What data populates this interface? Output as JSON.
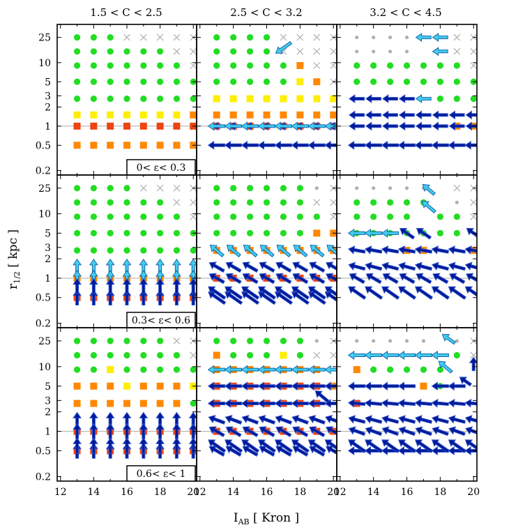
{
  "chart_data": {
    "type": "scatter",
    "description_axes": "3x3 panel grid of symbol maps; columns = concentration bins, rows = ellipticity bins",
    "column_titles": [
      "1.5 < C < 2.5",
      "2.5 < C < 3.2",
      "3.2 < C < 4.5"
    ],
    "row_labels": [
      "0< ε< 0.3",
      "0.3< ε< 0.6",
      "0.6< ε< 1"
    ],
    "xlabel_main": "I",
    "xlabel_sub": "AB",
    "xlabel_rest": " [ Kron ]",
    "ylabel_main": "r",
    "ylabel_sub": "1/2",
    "ylabel_rest": " [ kpc ]",
    "x_ticks": [
      12,
      14,
      16,
      18,
      20
    ],
    "x_tick_labels": [
      "12",
      "14",
      "16",
      "18",
      "20"
    ],
    "xlim": [
      11.8,
      20.2
    ],
    "y_scale": "log",
    "y_ticks": [
      0.2,
      0.5,
      1,
      2,
      3,
      5,
      10,
      25
    ],
    "y_tick_labels": [
      "0.2",
      "0.5",
      "1",
      "2",
      "3",
      "5",
      "10",
      "25"
    ],
    "ylim": [
      0.17,
      40
    ],
    "reference_line_y": 1,
    "x_grid": [
      13,
      14,
      15,
      16,
      17,
      18,
      19,
      20
    ],
    "y_grid": [
      0.5,
      1,
      1.5,
      2.7,
      5,
      9,
      15,
      25
    ],
    "marker_legend": {
      "G": "green circle",
      "g": "grey dot",
      "x": "grey cross",
      "Y": "yellow square",
      "O": "orange square",
      "R": "red-orange square",
      "B": "dark blue arrow",
      "C": "cyan arrow"
    },
    "colors": {
      "green": "#22dd22",
      "grey": "#b0b0b0",
      "yellow": "#ffee00",
      "orange": "#ff8800",
      "red": "#ee4411",
      "darkblue": "#001a99",
      "darkblue_edge": "#3355cc",
      "cyan": "#44ccee",
      "cyan_edge": "#1166aa",
      "refline": "#aaaaaa"
    },
    "panels": [
      {
        "row": 0,
        "col": 0,
        "grid": [
          "GGGxxxxx",
          "GGGGGGxx",
          "GGGGGGGx",
          "GGGGGGGG",
          "GGGGGGGG",
          "YYYYYYYO",
          "RRRRRRRR",
          "OOOOOOOO"
        ],
        "arrows": []
      },
      {
        "row": 0,
        "col": 1,
        "grid": [
          "GGGGxxxx",
          "GGGGxxxx",
          "GGGGGOxx",
          "GGGGGYOx",
          "YYYYYYYY",
          "OOOOOOOO",
          "RRRRRRRR",
          "........"
        ],
        "arrows": [
          {
            "x": 17.0,
            "y": 17,
            "angle": 215,
            "len": 1.1,
            "color": "C"
          },
          {
            "r": 6,
            "angle": 180,
            "len": 0.5,
            "color": "B"
          },
          {
            "r": 6,
            "angle": 180,
            "len": 1.0,
            "color": "C"
          },
          {
            "r": 7,
            "angle": 180,
            "len": 1.0,
            "color": "B"
          }
        ]
      },
      {
        "row": 0,
        "col": 2,
        "grid": [
          "gggg..xx",
          "gggg..xx",
          "GGGGGGGx",
          "GGGGGGGG",
          ".....GGG",
          "........",
          "......OO",
          "........"
        ],
        "arrows": [
          {
            "r": 0,
            "cols": [
              4,
              5
            ],
            "angle": 180,
            "len": 0.9,
            "color": "C"
          },
          {
            "r": 1,
            "cols": [
              5
            ],
            "angle": 180,
            "len": 0.9,
            "color": "C"
          },
          {
            "r": 4,
            "cols": [
              0,
              1,
              2,
              3
            ],
            "angle": 180,
            "len": 0.9,
            "color": "B"
          },
          {
            "r": 4,
            "cols": [
              4
            ],
            "angle": 180,
            "len": 0.9,
            "color": "C"
          },
          {
            "r": 5,
            "angle": 180,
            "len": 0.9,
            "color": "B"
          },
          {
            "r": 6,
            "angle": 180,
            "len": 0.9,
            "color": "B"
          },
          {
            "r": 7,
            "angle": 180,
            "len": 1.0,
            "color": "B"
          }
        ]
      },
      {
        "row": 1,
        "col": 0,
        "grid": [
          "GGGGxxxx",
          "GGGGGGxx",
          "GGGGGGGx",
          "GGGGGGGG",
          "GGGGGGGG",
          "........",
          "OOOOOOOO",
          "RRRRRRRR"
        ],
        "arrows": [
          {
            "r": 5,
            "angle": 90,
            "len": 0.9,
            "color": "C"
          },
          {
            "r": 6,
            "angle": 90,
            "len": 0.9,
            "color": "C"
          },
          {
            "r": 7,
            "angle": 90,
            "len": 0.9,
            "color": "B"
          },
          {
            "x": 13,
            "y": 0.75,
            "angle": 90,
            "len": 0.9,
            "color": "B",
            "cols": [
              0,
              1,
              2,
              3,
              4,
              5,
              6,
              7
            ]
          }
        ]
      },
      {
        "row": 1,
        "col": 1,
        "grid": [
          "GGGGGGgx",
          "GGGGGGxx",
          "GGGGGGGx",
          "GGGGGGOO",
          "OOOOOOOO",
          "........",
          "RRRRRRRR",
          "........"
        ],
        "arrows": [
          {
            "r": 4,
            "angle": 140,
            "len": 1.0,
            "color": "C"
          },
          {
            "r": 5,
            "angle": 150,
            "len": 1.0,
            "color": "B"
          },
          {
            "r": 6,
            "angle": 150,
            "len": 1.0,
            "color": "B"
          },
          {
            "r": 7,
            "angle": 145,
            "len": 1.2,
            "color": "B"
          },
          {
            "x": 13,
            "y": 0.6,
            "angle": 145,
            "len": 1.2,
            "color": "B",
            "cols": [
              0,
              1,
              2,
              3,
              4,
              5,
              6,
              7
            ]
          }
        ]
      },
      {
        "row": 1,
        "col": 2,
        "grid": [
          "ggggg.xx",
          "GGGGG.gx",
          "GGGG.GGx",
          "GGGGGGG.",
          "...OO..O",
          "........",
          "........",
          "........"
        ],
        "arrows": [
          {
            "x": 17.3,
            "y": 24,
            "angle": 140,
            "len": 0.9,
            "color": "C"
          },
          {
            "x": 17.3,
            "y": 13,
            "angle": 140,
            "len": 1.0,
            "color": "C"
          },
          {
            "r": 3,
            "cols": [
              0,
              1,
              2
            ],
            "angle": 180,
            "len": 1.0,
            "color": "C"
          },
          {
            "r": 3,
            "cols": [
              3,
              4,
              7
            ],
            "angle": 145,
            "len": 1.0,
            "color": "B"
          },
          {
            "r": 4,
            "angle": 170,
            "len": 1.0,
            "color": "B"
          },
          {
            "r": 5,
            "angle": 165,
            "len": 1.0,
            "color": "B"
          },
          {
            "r": 6,
            "angle": 150,
            "len": 1.0,
            "color": "B"
          },
          {
            "x": 13,
            "y": 0.6,
            "angle": 145,
            "len": 1.2,
            "color": "B",
            "cols": [
              0,
              1,
              2,
              3,
              4,
              5,
              6,
              7
            ]
          }
        ]
      },
      {
        "row": 2,
        "col": 0,
        "grid": [
          "GGGGGGxx",
          "GGGGGGGx",
          "GGYGGGGG",
          "OOOYOOOY",
          "OOOOOOOG",
          "........",
          "RRRRRRRR",
          "RRRRRRRR"
        ],
        "arrows": [
          {
            "r": 5,
            "angle": 90,
            "len": 0.9,
            "color": "B"
          },
          {
            "r": 6,
            "angle": 90,
            "len": 0.9,
            "color": "B"
          },
          {
            "r": 7,
            "angle": 90,
            "len": 0.9,
            "color": "B"
          },
          {
            "x": 13,
            "y": 0.6,
            "angle": 90,
            "len": 0.9,
            "color": "B",
            "cols": [
              0,
              1,
              2,
              3,
              4,
              5,
              6,
              7
            ]
          }
        ]
      },
      {
        "row": 2,
        "col": 1,
        "grid": [
          "GGGGGGgx",
          "OGGGYGxx",
          "OOOOOOO.",
          "RRRRRRRO",
          "RRRRRRR.",
          "........",
          "RRRRRRRR",
          "........"
        ],
        "arrows": [
          {
            "r": 2,
            "angle": 180,
            "len": 1.0,
            "color": "C"
          },
          {
            "r": 3,
            "angle": 180,
            "len": 1.0,
            "color": "B"
          },
          {
            "r": 4,
            "angle": 180,
            "len": 1.0,
            "color": "B"
          },
          {
            "x": 19.3,
            "y": 3.5,
            "angle": 140,
            "len": 1.0,
            "color": "B"
          },
          {
            "r": 5,
            "angle": 160,
            "len": 1.0,
            "color": "B"
          },
          {
            "r": 6,
            "angle": 150,
            "len": 1.0,
            "color": "B"
          },
          {
            "r": 7,
            "angle": 150,
            "len": 1.0,
            "color": "B"
          },
          {
            "x": 13,
            "y": 0.6,
            "angle": 145,
            "len": 1.2,
            "color": "B",
            "cols": [
              0,
              1,
              2,
              3,
              4,
              5,
              6,
              7
            ]
          }
        ]
      },
      {
        "row": 2,
        "col": 2,
        "grid": [
          "ggggg.gx",
          "......Gx",
          "OGGGGG..",
          "....OG..",
          "R.......",
          "........",
          "........",
          "........"
        ],
        "arrows": [
          {
            "x": 18.5,
            "y": 27,
            "angle": 145,
            "len": 0.9,
            "color": "C"
          },
          {
            "r": 1,
            "cols": [
              0,
              1,
              2,
              3,
              4,
              5
            ],
            "angle": 180,
            "len": 1.0,
            "color": "C"
          },
          {
            "x": 18.3,
            "y": 10,
            "angle": 140,
            "len": 1.0,
            "color": "C"
          },
          {
            "x": 20,
            "y": 11,
            "angle": 90,
            "len": 0.8,
            "color": "B"
          },
          {
            "r": 3,
            "cols": [
              0,
              1,
              2,
              3,
              5,
              6
            ],
            "angle": 180,
            "len": 1.0,
            "color": "B"
          },
          {
            "x": 19.5,
            "y": 6,
            "angle": 145,
            "len": 0.8,
            "color": "B"
          },
          {
            "r": 4,
            "angle": 175,
            "len": 1.0,
            "color": "B"
          },
          {
            "r": 5,
            "angle": 165,
            "len": 1.0,
            "color": "B"
          },
          {
            "r": 6,
            "angle": 160,
            "len": 1.0,
            "color": "B"
          },
          {
            "r": 7,
            "angle": 180,
            "len": 1.0,
            "color": "B"
          },
          {
            "x": 13,
            "y": 0.6,
            "angle": 145,
            "len": 1.2,
            "color": "B",
            "cols": [
              0,
              1,
              2,
              3,
              4,
              5,
              6,
              7
            ]
          }
        ]
      }
    ]
  }
}
